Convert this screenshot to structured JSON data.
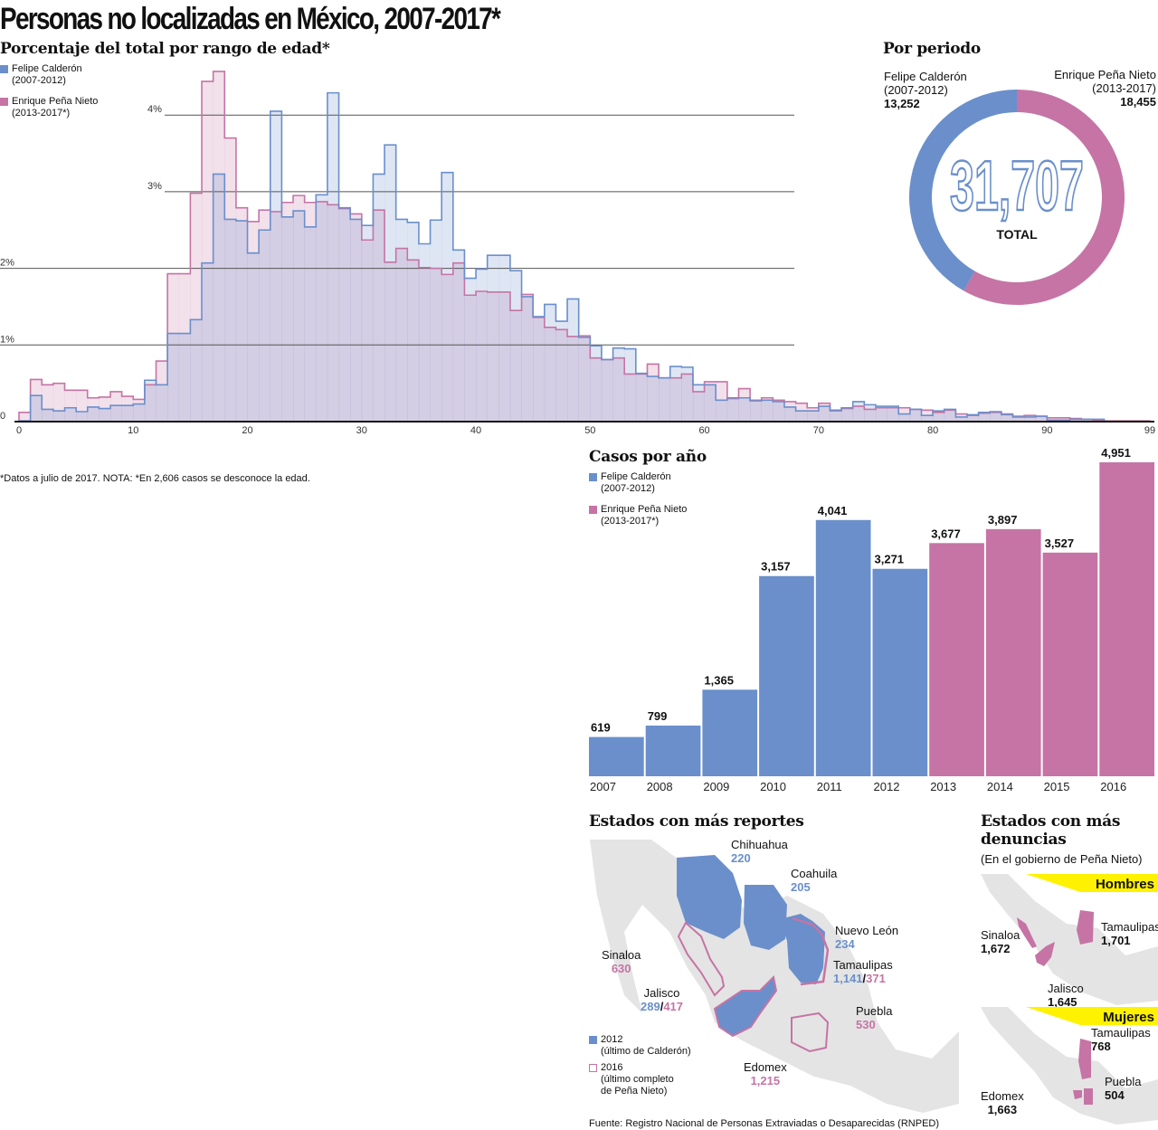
{
  "title": "Personas no localizadas en México, 2007-2017*",
  "colors": {
    "calderon": "#6a8fcb",
    "pena_nieto": "#c574a5",
    "highlight": "#fff200",
    "map_gray": "#e4e4e4"
  },
  "legend": {
    "calderon": {
      "name": "Felipe Calderón",
      "period": "(2007-2012)"
    },
    "pena_nieto": {
      "name": "Enrique Peña Nieto",
      "period": "(2013-2017*)"
    }
  },
  "footnote": "*Datos a julio de 2017. NOTA: *En 2,606 casos se desconoce la edad.",
  "source": "Fuente: Registro Nacional de Personas Extraviadas o Desaparecidas (RNPED)",
  "chart_data": [
    {
      "type": "bar",
      "subtype": "step-histogram",
      "title": "Porcentaje del total por rango de edad*",
      "ylim": [
        0,
        4.6
      ],
      "yticks": [
        "0",
        "1%",
        "2%",
        "3%",
        "4%"
      ],
      "ytick_values": [
        0,
        1,
        2,
        3,
        4
      ],
      "xlim": [
        0,
        99
      ],
      "xticks": [
        "0",
        "10",
        "20",
        "30",
        "40",
        "50",
        "60",
        "70",
        "80",
        "90",
        "99"
      ],
      "xtick_values": [
        0,
        10,
        20,
        30,
        40,
        50,
        60,
        70,
        80,
        90,
        99
      ],
      "grid": true,
      "series": [
        {
          "name": "Felipe Calderón (2007-2012)",
          "color": "#6a8fcb",
          "values": [
            0.01,
            0.34,
            0.16,
            0.14,
            0.18,
            0.13,
            0.19,
            0.17,
            0.21,
            0.21,
            0.23,
            0.54,
            0.48,
            1.15,
            1.15,
            1.33,
            2.07,
            3.23,
            2.64,
            2.62,
            2.2,
            2.5,
            4.05,
            2.67,
            2.75,
            2.54,
            2.96,
            4.29,
            2.79,
            2.64,
            2.56,
            3.23,
            3.61,
            2.64,
            2.6,
            2.32,
            2.63,
            3.25,
            2.24,
            1.87,
            1.99,
            2.17,
            2.17,
            1.97,
            1.63,
            1.37,
            1.53,
            1.31,
            1.6,
            1.1,
            0.99,
            0.81,
            0.96,
            0.95,
            0.63,
            0.59,
            0.57,
            0.72,
            0.71,
            0.48,
            0.48,
            0.28,
            0.31,
            0.31,
            0.27,
            0.28,
            0.26,
            0.19,
            0.14,
            0.14,
            0.2,
            0.15,
            0.18,
            0.26,
            0.22,
            0.2,
            0.2,
            0.1,
            0.16,
            0.08,
            0.14,
            0.16,
            0.06,
            0.09,
            0.12,
            0.13,
            0.09,
            0.06,
            0.06,
            0.07,
            0.02,
            0.02,
            0.03,
            0.03,
            0.03,
            0,
            0,
            0,
            0
          ]
        },
        {
          "name": "Enrique Peña Nieto (2013-2017*)",
          "color": "#c574a5",
          "values": [
            0.12,
            0.55,
            0.48,
            0.5,
            0.41,
            0.41,
            0.31,
            0.32,
            0.39,
            0.33,
            0.29,
            0.48,
            0.79,
            1.93,
            1.93,
            2.98,
            4.44,
            4.57,
            3.7,
            2.79,
            2.61,
            2.76,
            2.74,
            2.86,
            2.95,
            2.86,
            2.87,
            2.83,
            2.78,
            2.71,
            2.37,
            2.76,
            2.08,
            2.26,
            2.11,
            2.01,
            2.0,
            1.92,
            2.07,
            1.65,
            1.7,
            1.69,
            1.69,
            1.45,
            1.66,
            1.36,
            1.23,
            1.2,
            1.11,
            1.12,
            0.83,
            0.81,
            0.83,
            0.62,
            0.62,
            0.75,
            0.57,
            0.57,
            0.62,
            0.39,
            0.52,
            0.52,
            0.3,
            0.43,
            0.28,
            0.31,
            0.28,
            0.26,
            0.24,
            0.18,
            0.24,
            0.14,
            0.17,
            0.2,
            0.16,
            0.18,
            0.18,
            0.18,
            0.16,
            0.15,
            0.12,
            0.15,
            0.1,
            0.08,
            0.11,
            0.12,
            0.1,
            0.07,
            0.08,
            0.07,
            0.05,
            0.05,
            0.04,
            0.03,
            0.02,
            0.01,
            0.01,
            0.01,
            0.01
          ]
        }
      ]
    },
    {
      "type": "pie",
      "subtype": "donut",
      "title": "Por periodo",
      "center_value": "31,707",
      "center_label": "TOTAL",
      "slices": [
        {
          "name": "Felipe Calderón",
          "period": "(2007-2012)",
          "value": 13252,
          "label": "13,252",
          "color": "#6a8fcb"
        },
        {
          "name": "Enrique Peña Nieto",
          "period": "(2013-2017)",
          "value": 18455,
          "label": "18,455",
          "color": "#c574a5"
        }
      ]
    },
    {
      "type": "bar",
      "title": "Casos por año",
      "categories": [
        "2007",
        "2008",
        "2009",
        "2010",
        "2011",
        "2012",
        "2013",
        "2014",
        "2015",
        "2016"
      ],
      "values": [
        619,
        799,
        1365,
        3157,
        4041,
        3271,
        3677,
        3897,
        3527,
        4951
      ],
      "labels": [
        "619",
        "799",
        "1,365",
        "3,157",
        "4,041",
        "3,271",
        "3,677",
        "3,897",
        "3,527",
        "4,951"
      ],
      "series_by_bar": [
        "calderon",
        "calderon",
        "calderon",
        "calderon",
        "calderon",
        "calderon",
        "pena_nieto",
        "pena_nieto",
        "pena_nieto",
        "pena_nieto"
      ],
      "ylim": [
        0,
        4951
      ],
      "grid": false
    }
  ],
  "map_reportes": {
    "title": "Estados con más reportes",
    "states": [
      {
        "name": "Chihuahua",
        "v2012": "220"
      },
      {
        "name": "Coahuila",
        "v2012": "205"
      },
      {
        "name": "Nuevo León",
        "v2012": "234"
      },
      {
        "name": "Tamaulipas",
        "v2012": "1,141",
        "sep": "/",
        "v2016": "371"
      },
      {
        "name": "Sinaloa",
        "v2016": "630"
      },
      {
        "name": "Jalisco",
        "v2012": "289",
        "sep": "/",
        "v2016": "417"
      },
      {
        "name": "Puebla",
        "v2016": "530"
      },
      {
        "name": "Edomex",
        "v2016": "1,215"
      }
    ],
    "legend": [
      {
        "year": "2012",
        "desc": "(último de Calderón)"
      },
      {
        "year": "2016",
        "desc": "(último completo",
        "desc2": "de Peña Nieto)"
      }
    ]
  },
  "map_denuncias": {
    "title1": "Estados con más",
    "title2": "denuncias",
    "subtitle": "(En el gobierno de Peña Nieto)",
    "hombres": {
      "label": "Hombres",
      "states": [
        {
          "name": "Sinaloa",
          "value": "1,672"
        },
        {
          "name": "Tamaulipas",
          "value": "1,701"
        },
        {
          "name": "Jalisco",
          "value": "1,645"
        }
      ]
    },
    "mujeres": {
      "label": "Mujeres",
      "states": [
        {
          "name": "Tamaulipas",
          "value": "768"
        },
        {
          "name": "Puebla",
          "value": "504"
        },
        {
          "name": "Edomex",
          "value": "1,663"
        }
      ]
    }
  }
}
